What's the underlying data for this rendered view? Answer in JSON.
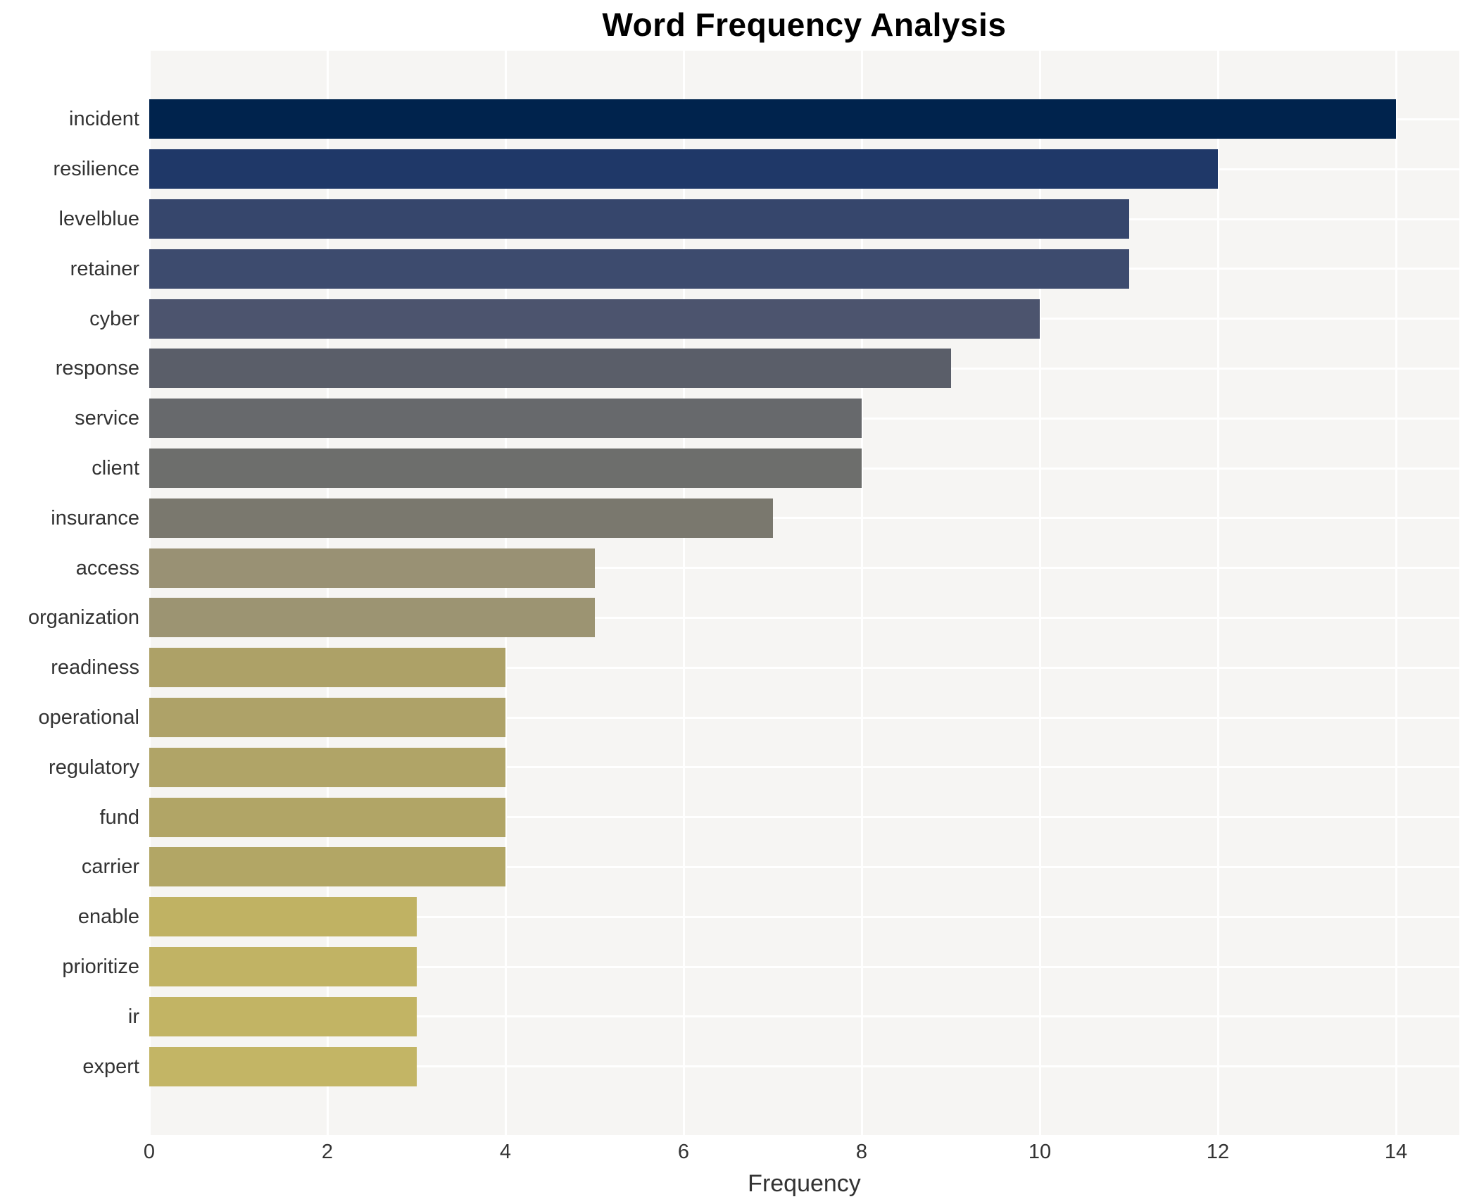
{
  "title": "Word Frequency Analysis",
  "xlabel": "Frequency",
  "chart_data": {
    "type": "bar",
    "orientation": "horizontal",
    "title": "Word Frequency Analysis",
    "xlabel": "Frequency",
    "ylabel": "",
    "categories": [
      "incident",
      "resilience",
      "levelblue",
      "retainer",
      "cyber",
      "response",
      "service",
      "client",
      "insurance",
      "access",
      "organization",
      "readiness",
      "operational",
      "regulatory",
      "fund",
      "carrier",
      "enable",
      "prioritize",
      "ir",
      "expert"
    ],
    "values": [
      14,
      12,
      11,
      11,
      10,
      9,
      8,
      8,
      7,
      5,
      5,
      4,
      4,
      4,
      4,
      4,
      3,
      3,
      3,
      3
    ],
    "bar_colors": [
      "#00234d",
      "#1f3868",
      "#36466c",
      "#3d4b6e",
      "#4c546e",
      "#5a5e69",
      "#67696c",
      "#6d6e6c",
      "#7a786e",
      "#999174",
      "#9c9472",
      "#ada167",
      "#aea268",
      "#b0a467",
      "#b1a566",
      "#b2a665",
      "#c0b263",
      "#c1b364",
      "#c2b464",
      "#c3b565"
    ],
    "colormap": "cividis",
    "xticks": [
      0,
      2,
      4,
      6,
      8,
      10,
      12,
      14
    ],
    "xlim": [
      0,
      14.71
    ],
    "grid": true,
    "legend": "none",
    "plot_background": "#f6f5f3",
    "grid_color": "#ffffff",
    "label_color": "#333333",
    "title_color": "#000000"
  }
}
